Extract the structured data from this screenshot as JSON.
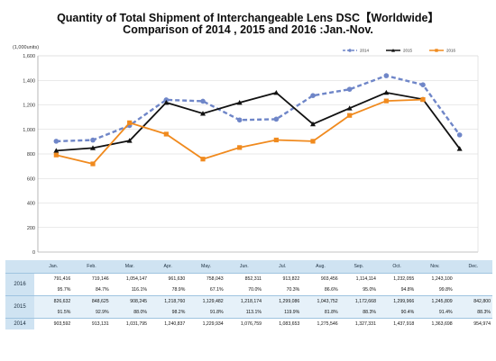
{
  "title_line1": "Quantity of Total Shipment of Interchangeable Lens DSC【Worldwide】",
  "title_line2": "Comparison of 2014 , 2015 and 2016 :Jan.-Nov.",
  "chart_data": {
    "type": "line",
    "unit_label": "(1,000units)",
    "categories": [
      "Jan.",
      "Feb.",
      "Mar.",
      "Apr.",
      "May.",
      "Jun.",
      "Jul.",
      "Aug.",
      "Sep.",
      "Oct.",
      "Nov.",
      "Dec."
    ],
    "ylim": [
      0,
      1600
    ],
    "yticks": [
      "0",
      "200",
      "400",
      "600",
      "800",
      "1,000",
      "1,200",
      "1,400",
      "1,600"
    ],
    "grid": true,
    "legend_position": "top-right",
    "series": [
      {
        "name": "2014",
        "color": "#6f86c8",
        "style": "dashed",
        "marker": "circle",
        "values": [
          903.592,
          913.131,
          1031.795,
          1240.837,
          1229.934,
          1076.759,
          1083.653,
          1275.546,
          1327.331,
          1437.918,
          1363.698,
          954.974
        ]
      },
      {
        "name": "2015",
        "color": "#111111",
        "style": "solid",
        "marker": "triangle",
        "values": [
          826.632,
          848.625,
          908.245,
          1218.76,
          1129.482,
          1218.174,
          1299.086,
          1043.752,
          1172.668,
          1299.966,
          1245.809,
          842.8
        ]
      },
      {
        "name": "2016",
        "color": "#f08a1e",
        "style": "solid",
        "marker": "square",
        "values": [
          791.416,
          719.146,
          1054.147,
          961.63,
          758.043,
          852.311,
          913.822,
          903.456,
          1114.114,
          1232.055,
          1243.1,
          null
        ]
      }
    ]
  },
  "table": {
    "months": [
      "Jan.",
      "Feb.",
      "Mar.",
      "Apr.",
      "May.",
      "Jun.",
      "Jul.",
      "Aug.",
      "Sep.",
      "Oct.",
      "Nov.",
      "Dec."
    ],
    "rows": [
      {
        "year": "2016",
        "units": [
          "791,416",
          "719,146",
          "1,054,147",
          "961,630",
          "758,043",
          "852,311",
          "913,822",
          "903,456",
          "1,114,114",
          "1,232,055",
          "1,243,100",
          ""
        ],
        "pct": [
          "95.7%",
          "84.7%",
          "116.1%",
          "78.9%",
          "67.1%",
          "70.0%",
          "70.3%",
          "86.6%",
          "95.0%",
          "94.8%",
          "99.8%",
          ""
        ]
      },
      {
        "year": "2015",
        "units": [
          "826,632",
          "848,625",
          "908,245",
          "1,218,760",
          "1,129,482",
          "1,218,174",
          "1,299,086",
          "1,043,752",
          "1,172,668",
          "1,299,966",
          "1,245,809",
          "842,800"
        ],
        "pct": [
          "91.5%",
          "92.9%",
          "88.0%",
          "98.2%",
          "91.8%",
          "113.1%",
          "119.9%",
          "81.8%",
          "88.3%",
          "90.4%",
          "91.4%",
          "88.3%"
        ]
      },
      {
        "year": "2014",
        "units": [
          "903,592",
          "913,131",
          "1,031,795",
          "1,240,837",
          "1,229,934",
          "1,076,759",
          "1,083,653",
          "1,275,546",
          "1,327,331",
          "1,437,918",
          "1,363,698",
          "954,974"
        ],
        "pct": []
      }
    ]
  }
}
